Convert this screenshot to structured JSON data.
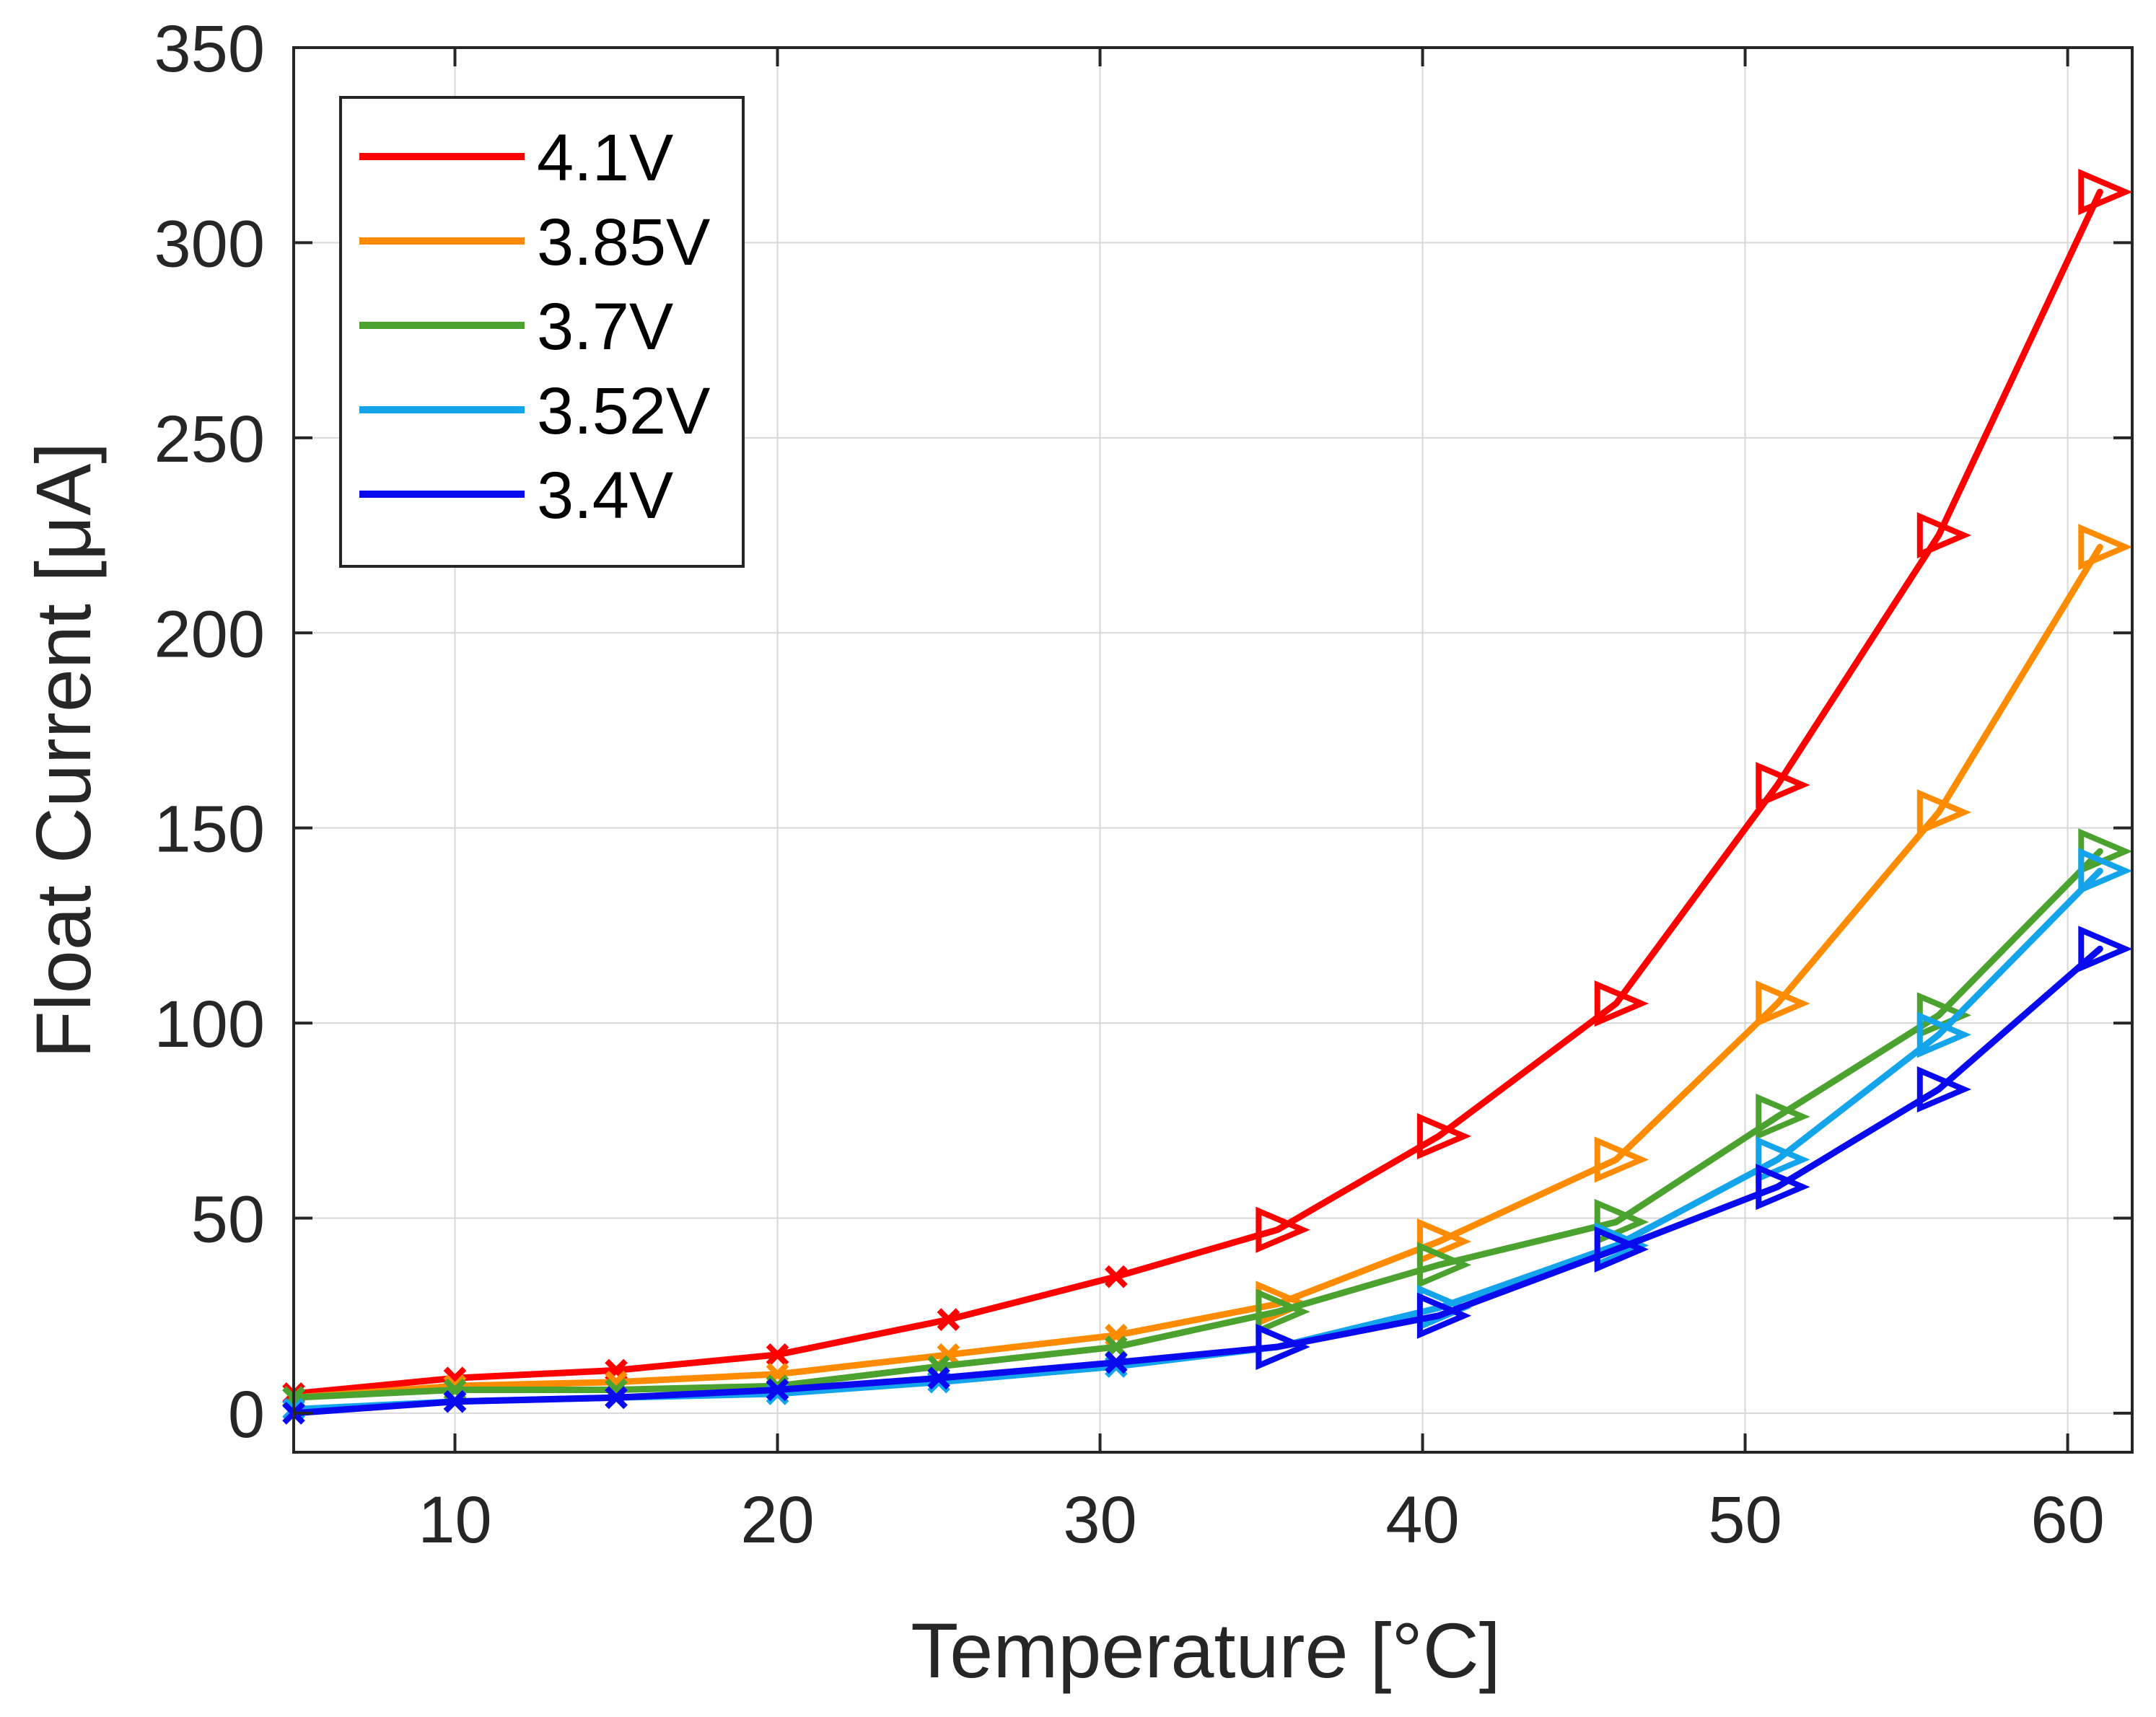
{
  "chart_data": {
    "type": "line",
    "title": "",
    "xlabel": "Temperature [°C]",
    "ylabel": "Float Current [μA]",
    "xlim": [
      5,
      62
    ],
    "ylim": [
      -10,
      350
    ],
    "xticks": [
      10,
      20,
      30,
      40,
      50,
      60
    ],
    "yticks": [
      0,
      50,
      100,
      150,
      200,
      250,
      300,
      350
    ],
    "grid": true,
    "legend_position": "top-left",
    "series": [
      {
        "name": "4.1V",
        "color": "#ff0000",
        "x": [
          5,
          10,
          15,
          20,
          25.3,
          30.5,
          35.5,
          40.5,
          46,
          51,
          56,
          61
        ],
        "y": [
          5,
          9,
          11,
          15,
          24,
          35,
          47,
          71,
          105,
          161,
          225,
          313
        ]
      },
      {
        "name": "3.85V",
        "color": "#ff8c00",
        "x": [
          5,
          10,
          15,
          20,
          25.3,
          30.5,
          35.5,
          40.5,
          46,
          51,
          56,
          61
        ],
        "y": [
          4,
          7,
          8,
          10,
          15,
          20,
          28,
          44,
          65,
          105,
          154,
          222
        ]
      },
      {
        "name": "3.7V",
        "color": "#4ca22f",
        "x": [
          5,
          10,
          15,
          20,
          25,
          30.5,
          35.5,
          40.5,
          46,
          51,
          56,
          61
        ],
        "y": [
          4,
          6,
          6,
          7,
          12,
          17,
          26,
          38,
          49,
          76,
          102,
          144
        ]
      },
      {
        "name": "3.52V",
        "color": "#13a4ec",
        "x": [
          5,
          10,
          15,
          20,
          25,
          30.5,
          35.5,
          40.5,
          46,
          51,
          56,
          61
        ],
        "y": [
          1,
          3,
          4,
          5,
          8,
          12,
          17,
          27,
          43,
          65,
          97,
          139
        ]
      },
      {
        "name": "3.4V",
        "color": "#0a0aef",
        "x": [
          5,
          10,
          15,
          20,
          25,
          30.5,
          35.5,
          40.5,
          46,
          51,
          56,
          61
        ],
        "y": [
          0,
          3,
          4,
          6,
          9,
          13,
          17,
          25,
          42,
          58,
          83,
          119
        ]
      }
    ]
  }
}
